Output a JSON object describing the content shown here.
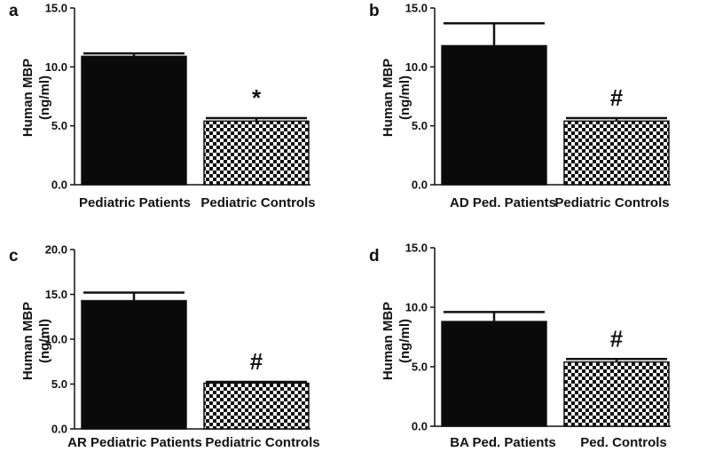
{
  "chart_data": [
    {
      "panel": "a",
      "type": "bar",
      "ylabel": [
        "Human MBP",
        "(ng/ml)"
      ],
      "ylim": [
        0,
        15
      ],
      "yticks": [
        "0.0",
        "5.0",
        "10.0",
        "15.0"
      ],
      "categories": [
        "Pediatric Patients",
        "Pediatric Controls"
      ],
      "values": [
        10.9,
        5.4
      ],
      "errors": [
        0.25,
        0.25
      ],
      "fills": [
        "solid",
        "checkered"
      ],
      "annotations": [
        "",
        "*"
      ]
    },
    {
      "panel": "b",
      "type": "bar",
      "ylabel": [
        "Human MBP",
        "(ng/ml)"
      ],
      "ylim": [
        0,
        15
      ],
      "yticks": [
        "0.0",
        "5.0",
        "10.0",
        "15.0"
      ],
      "categories": [
        "AD Ped. Patients",
        "Pediatric Controls"
      ],
      "values": [
        11.8,
        5.4
      ],
      "errors": [
        1.9,
        0.25
      ],
      "fills": [
        "solid",
        "checkered"
      ],
      "annotations": [
        "",
        "#"
      ]
    },
    {
      "panel": "c",
      "type": "bar",
      "ylabel": [
        "Human MBP",
        "(ng/ml)"
      ],
      "ylim": [
        0,
        20
      ],
      "yticks": [
        "0.0",
        "5.0",
        "10.0",
        "15.0",
        "20.0"
      ],
      "categories": [
        "AR Pediatric Patients",
        "Pediatric Controls"
      ],
      "values": [
        14.3,
        5.1
      ],
      "errors": [
        0.9,
        0.15
      ],
      "fills": [
        "solid",
        "checkered"
      ],
      "annotations": [
        "",
        "#"
      ]
    },
    {
      "panel": "d",
      "type": "bar",
      "ylabel": [
        "Human MBP",
        "(ng/ml)"
      ],
      "ylim": [
        0,
        15
      ],
      "yticks": [
        "0.0",
        "5.0",
        "10.0",
        "15.0"
      ],
      "categories": [
        "BA Ped. Patients",
        "Ped. Controls"
      ],
      "values": [
        8.8,
        5.4
      ],
      "errors": [
        0.8,
        0.25
      ],
      "fills": [
        "solid",
        "checkered"
      ],
      "annotations": [
        "",
        "#"
      ]
    }
  ]
}
